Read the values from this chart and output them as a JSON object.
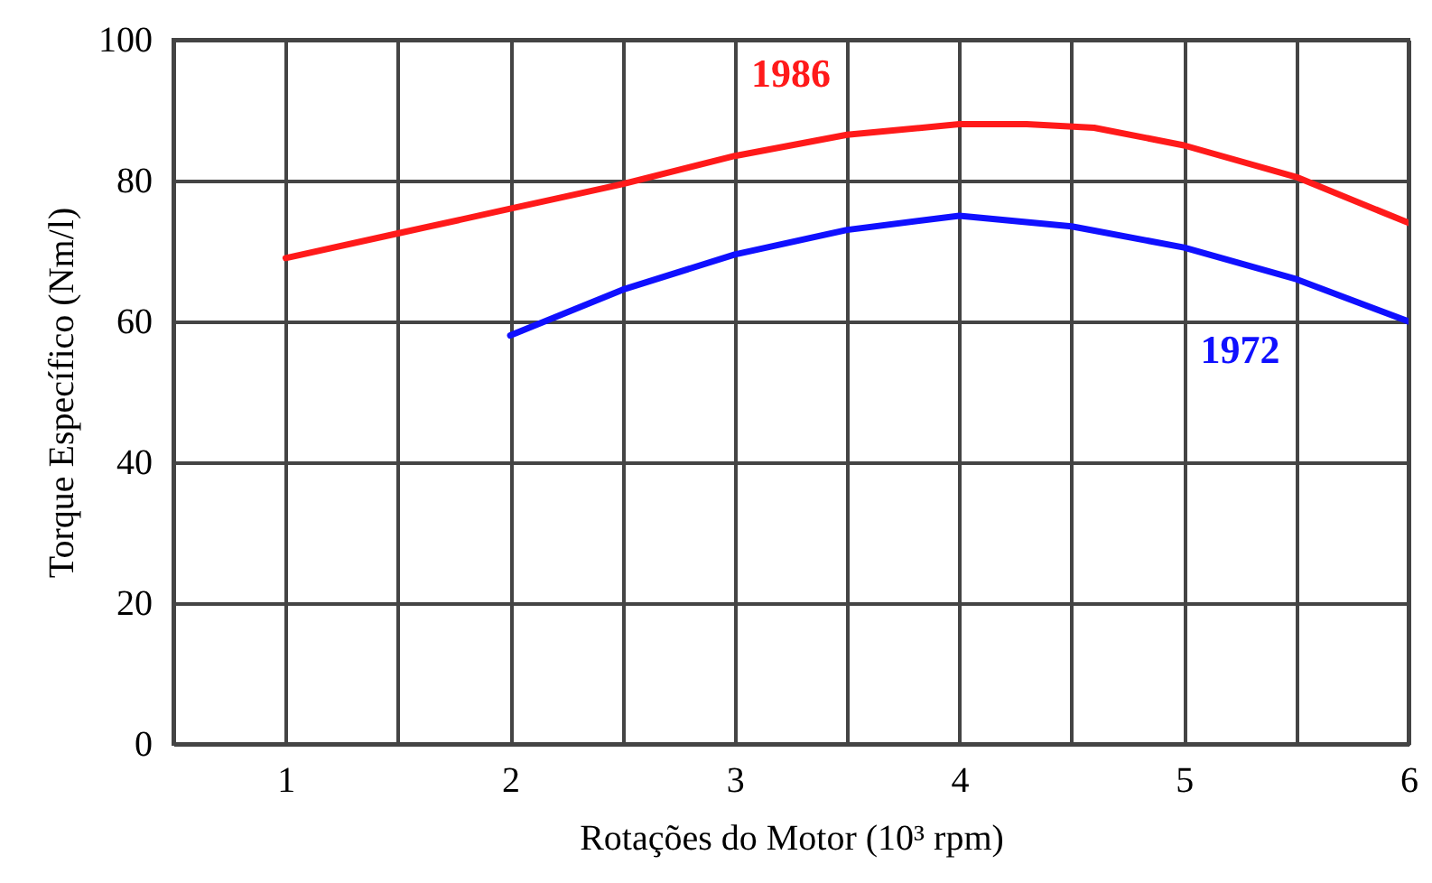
{
  "chart_data": {
    "type": "line",
    "xlabel": "Rotações do Motor (10³ rpm)",
    "ylabel": "Torque Específico (Nm/l)",
    "xlim": [
      0.5,
      6
    ],
    "xticks": [
      1,
      {
        "value": 1.5,
        "label": null
      },
      2,
      {
        "value": 2.5,
        "label": null
      },
      3,
      {
        "value": 3.5,
        "label": null
      },
      4,
      {
        "value": 4.5,
        "label": null
      },
      5,
      {
        "value": 5.5,
        "label": null
      },
      6
    ],
    "ylim": [
      0,
      100
    ],
    "yticks": [
      0,
      20,
      40,
      60,
      80,
      100
    ],
    "grid": true,
    "legend": false,
    "marker": "none",
    "line_style": "solid",
    "series": [
      {
        "name": "1986",
        "color": "#ff1a1a",
        "x": [
          1,
          1.5,
          2,
          2.5,
          3,
          3.5,
          4,
          4.3,
          4.6,
          5,
          5.5,
          6
        ],
        "values": [
          69,
          72.5,
          76,
          79.5,
          83.5,
          86.5,
          88,
          88,
          87.5,
          85,
          80.5,
          74
        ]
      },
      {
        "name": "1972",
        "color": "#1010ff",
        "x": [
          2,
          2.5,
          3,
          3.5,
          4,
          4.5,
          5,
          5.5,
          6
        ],
        "values": [
          58,
          64.5,
          69.5,
          73,
          75,
          73.5,
          70.5,
          66,
          60
        ]
      }
    ]
  }
}
